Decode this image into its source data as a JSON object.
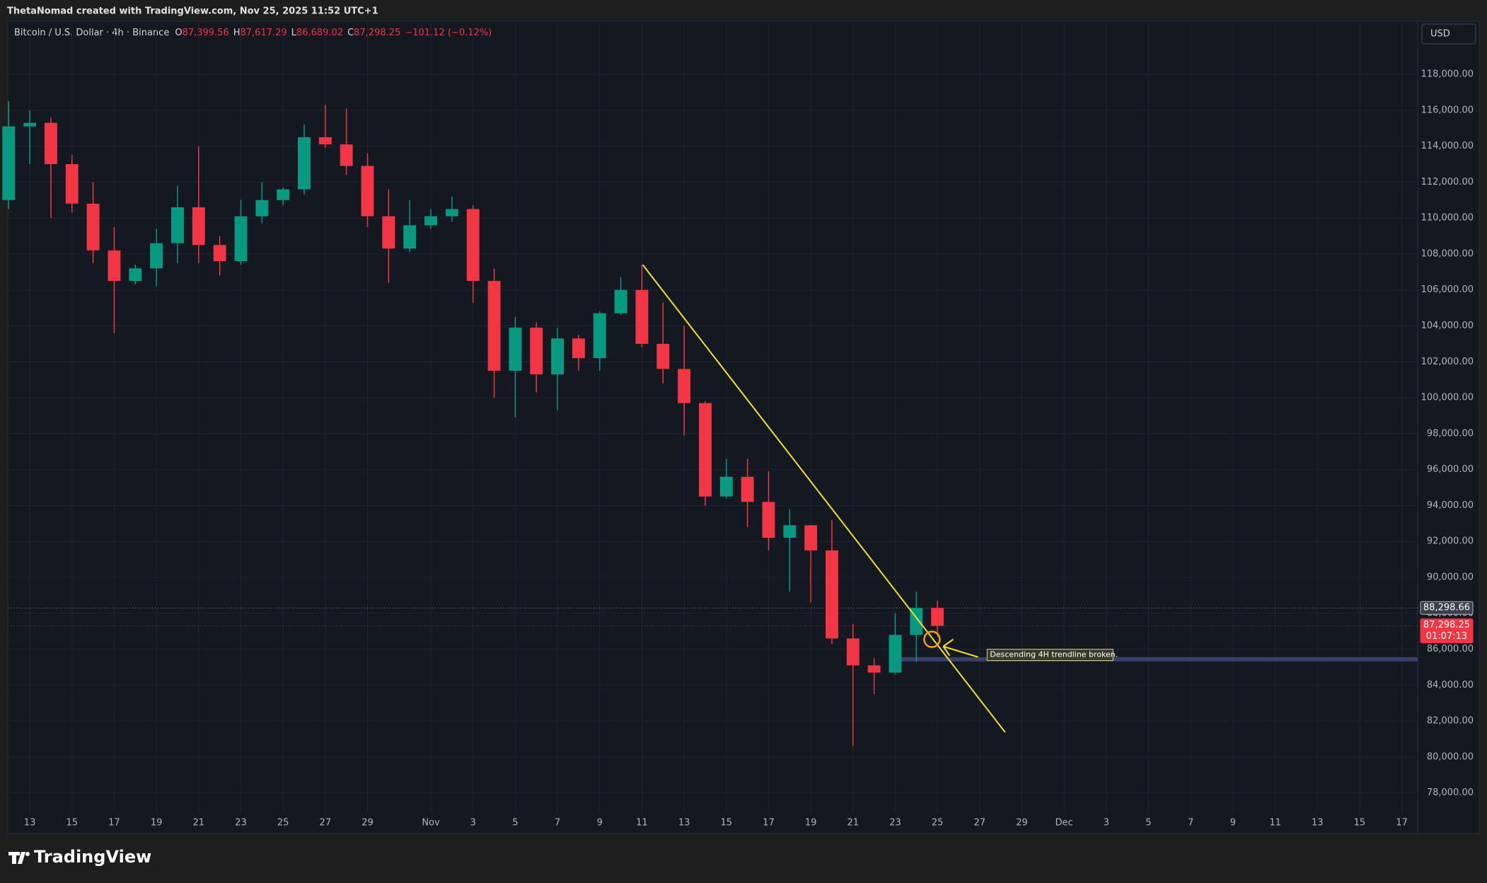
{
  "header": {
    "credit": "ThetaNomad created with TradingView.com, Nov 25, 2025 11:52 UTC+1"
  },
  "chart_data": {
    "type": "candlestick",
    "title": "Bitcoin / U.S. Dollar · 4h · Binance",
    "ohlc_legend": [
      {
        "key": "O",
        "value": 87399.56,
        "label": "87,399.56"
      },
      {
        "key": "H",
        "value": 87617.29,
        "label": "87,617.29"
      },
      {
        "key": "L",
        "value": 86689.02,
        "label": "86,689.02"
      },
      {
        "key": "C",
        "value": 87298.25,
        "label": "87,298.25"
      }
    ],
    "change": "−101.12 (−0.12%)",
    "currency": "USD",
    "x": [
      "2025-10-12",
      "2025-10-13",
      "2025-10-14",
      "2025-10-15",
      "2025-10-16",
      "2025-10-17",
      "2025-10-18",
      "2025-10-19",
      "2025-10-20",
      "2025-10-21",
      "2025-10-22",
      "2025-10-23",
      "2025-10-24",
      "2025-10-25",
      "2025-10-26",
      "2025-10-27",
      "2025-10-28",
      "2025-10-29",
      "2025-10-30",
      "2025-10-31",
      "2025-11-01",
      "2025-11-02",
      "2025-11-03",
      "2025-11-04",
      "2025-11-05",
      "2025-11-06",
      "2025-11-07",
      "2025-11-08",
      "2025-11-09",
      "2025-11-10",
      "2025-11-11",
      "2025-11-12",
      "2025-11-13",
      "2025-11-14",
      "2025-11-15",
      "2025-11-16",
      "2025-11-17",
      "2025-11-18",
      "2025-11-19",
      "2025-11-20",
      "2025-11-21",
      "2025-11-22",
      "2025-11-23",
      "2025-11-24",
      "2025-11-25"
    ],
    "open": [
      111000,
      115100,
      115300,
      113000,
      110800,
      108200,
      106500,
      107200,
      108600,
      110600,
      108500,
      107600,
      110100,
      111000,
      111600,
      114500,
      114100,
      112900,
      110100,
      108300,
      109600,
      110100,
      110500,
      106500,
      101500,
      103900,
      101300,
      103300,
      102200,
      104700,
      106000,
      103000,
      101600,
      99700,
      94500,
      95600,
      94200,
      92200,
      92900,
      91500,
      86600,
      85100,
      84700,
      86800,
      88300
    ],
    "high": [
      116500,
      116000,
      115600,
      113500,
      112000,
      109500,
      107400,
      109400,
      111800,
      114000,
      109000,
      111000,
      112000,
      111700,
      115200,
      116300,
      116100,
      113600,
      111600,
      111000,
      110500,
      111200,
      110700,
      107200,
      104500,
      104200,
      103900,
      103500,
      104800,
      106700,
      107400,
      105300,
      104000,
      99800,
      96600,
      96600,
      95900,
      93800,
      92900,
      93200,
      87400,
      85500,
      88000,
      89200,
      88700
    ],
    "low": [
      110500,
      113000,
      110000,
      110300,
      107500,
      103600,
      106300,
      106200,
      107500,
      107500,
      106800,
      107400,
      109700,
      110700,
      111300,
      113900,
      112400,
      109500,
      106400,
      108100,
      109400,
      109800,
      105300,
      100000,
      98900,
      100300,
      99300,
      101500,
      101500,
      104600,
      102800,
      100800,
      97900,
      94000,
      94400,
      92800,
      91500,
      89200,
      88600,
      86300,
      80600,
      83500,
      84600,
      85300,
      86700
    ],
    "close": [
      115100,
      115300,
      113000,
      110800,
      108200,
      106500,
      107200,
      108600,
      110600,
      108500,
      107600,
      110100,
      111000,
      111600,
      114500,
      114100,
      112900,
      110100,
      108300,
      109600,
      110100,
      110500,
      106500,
      101500,
      103900,
      101300,
      103300,
      102200,
      104700,
      106000,
      103000,
      101600,
      99700,
      94500,
      95600,
      94200,
      92200,
      92900,
      91500,
      86600,
      85100,
      84700,
      86800,
      88300,
      87298.25
    ],
    "up_color": "#089981",
    "down_color": "#f23645",
    "xlim": [
      "2025-10-11T23:00",
      "2025-12-17T18:00"
    ],
    "xticks": [
      {
        "value": "2025-10-13",
        "label": "13"
      },
      {
        "value": "2025-10-15",
        "label": "15"
      },
      {
        "value": "2025-10-17",
        "label": "17"
      },
      {
        "value": "2025-10-19",
        "label": "19"
      },
      {
        "value": "2025-10-21",
        "label": "21"
      },
      {
        "value": "2025-10-23",
        "label": "23"
      },
      {
        "value": "2025-10-25",
        "label": "25"
      },
      {
        "value": "2025-10-27",
        "label": "27"
      },
      {
        "value": "2025-10-29",
        "label": "29"
      },
      {
        "value": "2025-11-01",
        "label": "Nov"
      },
      {
        "value": "2025-11-03",
        "label": "3"
      },
      {
        "value": "2025-11-05",
        "label": "5"
      },
      {
        "value": "2025-11-07",
        "label": "7"
      },
      {
        "value": "2025-11-09",
        "label": "9"
      },
      {
        "value": "2025-11-11",
        "label": "11"
      },
      {
        "value": "2025-11-13",
        "label": "13"
      },
      {
        "value": "2025-11-15",
        "label": "15"
      },
      {
        "value": "2025-11-17",
        "label": "17"
      },
      {
        "value": "2025-11-19",
        "label": "19"
      },
      {
        "value": "2025-11-21",
        "label": "21"
      },
      {
        "value": "2025-11-23",
        "label": "23"
      },
      {
        "value": "2025-11-25",
        "label": "25"
      },
      {
        "value": "2025-11-27",
        "label": "27"
      },
      {
        "value": "2025-11-29",
        "label": "29"
      },
      {
        "value": "2025-12-01",
        "label": "Dec"
      },
      {
        "value": "2025-12-03",
        "label": "3"
      },
      {
        "value": "2025-12-05",
        "label": "5"
      },
      {
        "value": "2025-12-07",
        "label": "7"
      },
      {
        "value": "2025-12-09",
        "label": "9"
      },
      {
        "value": "2025-12-11",
        "label": "11"
      },
      {
        "value": "2025-12-13",
        "label": "13"
      },
      {
        "value": "2025-12-15",
        "label": "15"
      },
      {
        "value": "2025-12-17",
        "label": "17"
      }
    ],
    "ylim": [
      75784,
      120955
    ],
    "yticks": [
      {
        "value": 78000,
        "label": "78,000.00"
      },
      {
        "value": 80000,
        "label": "80,000.00"
      },
      {
        "value": 82000,
        "label": "82,000.00"
      },
      {
        "value": 84000,
        "label": "84,000.00"
      },
      {
        "value": 86000,
        "label": "86,000.00"
      },
      {
        "value": 88000,
        "label": "88,000.00"
      },
      {
        "value": 90000,
        "label": "90,000.00"
      },
      {
        "value": 92000,
        "label": "92,000.00"
      },
      {
        "value": 94000,
        "label": "94,000.00"
      },
      {
        "value": 96000,
        "label": "96,000.00"
      },
      {
        "value": 98000,
        "label": "98,000.00"
      },
      {
        "value": 100000,
        "label": "100,000.00"
      },
      {
        "value": 102000,
        "label": "102,000.00"
      },
      {
        "value": 104000,
        "label": "104,000.00"
      },
      {
        "value": 106000,
        "label": "106,000.00"
      },
      {
        "value": 108000,
        "label": "108,000.00"
      },
      {
        "value": 110000,
        "label": "110,000.00"
      },
      {
        "value": 112000,
        "label": "112,000.00"
      },
      {
        "value": 114000,
        "label": "114,000.00"
      },
      {
        "value": 116000,
        "label": "116,000.00"
      },
      {
        "value": 118000,
        "label": "118,000.00"
      }
    ],
    "grid": true,
    "price_lines": [
      {
        "value": 88298.66,
        "label": "88,298.66",
        "color": "#b2b5be"
      },
      {
        "value": 87298.25,
        "label": "87,298.25",
        "color": "#f23645",
        "countdown": "01:07:13"
      }
    ],
    "trendline": {
      "x": [
        "2025-11-11T01:00",
        "2025-11-28T05:00"
      ],
      "y": [
        107393,
        81377
      ],
      "color": "#f5e028"
    },
    "zone": {
      "x": "2025-11-23T04:00",
      "y": 85440,
      "color": "#3b3f6b"
    },
    "annotation": {
      "text": "Descending 4H trendline broken.",
      "x": "2025-11-24T17:45",
      "y": 86550,
      "color": "#f5e028"
    }
  },
  "footer": {
    "logo": "TradingView"
  }
}
